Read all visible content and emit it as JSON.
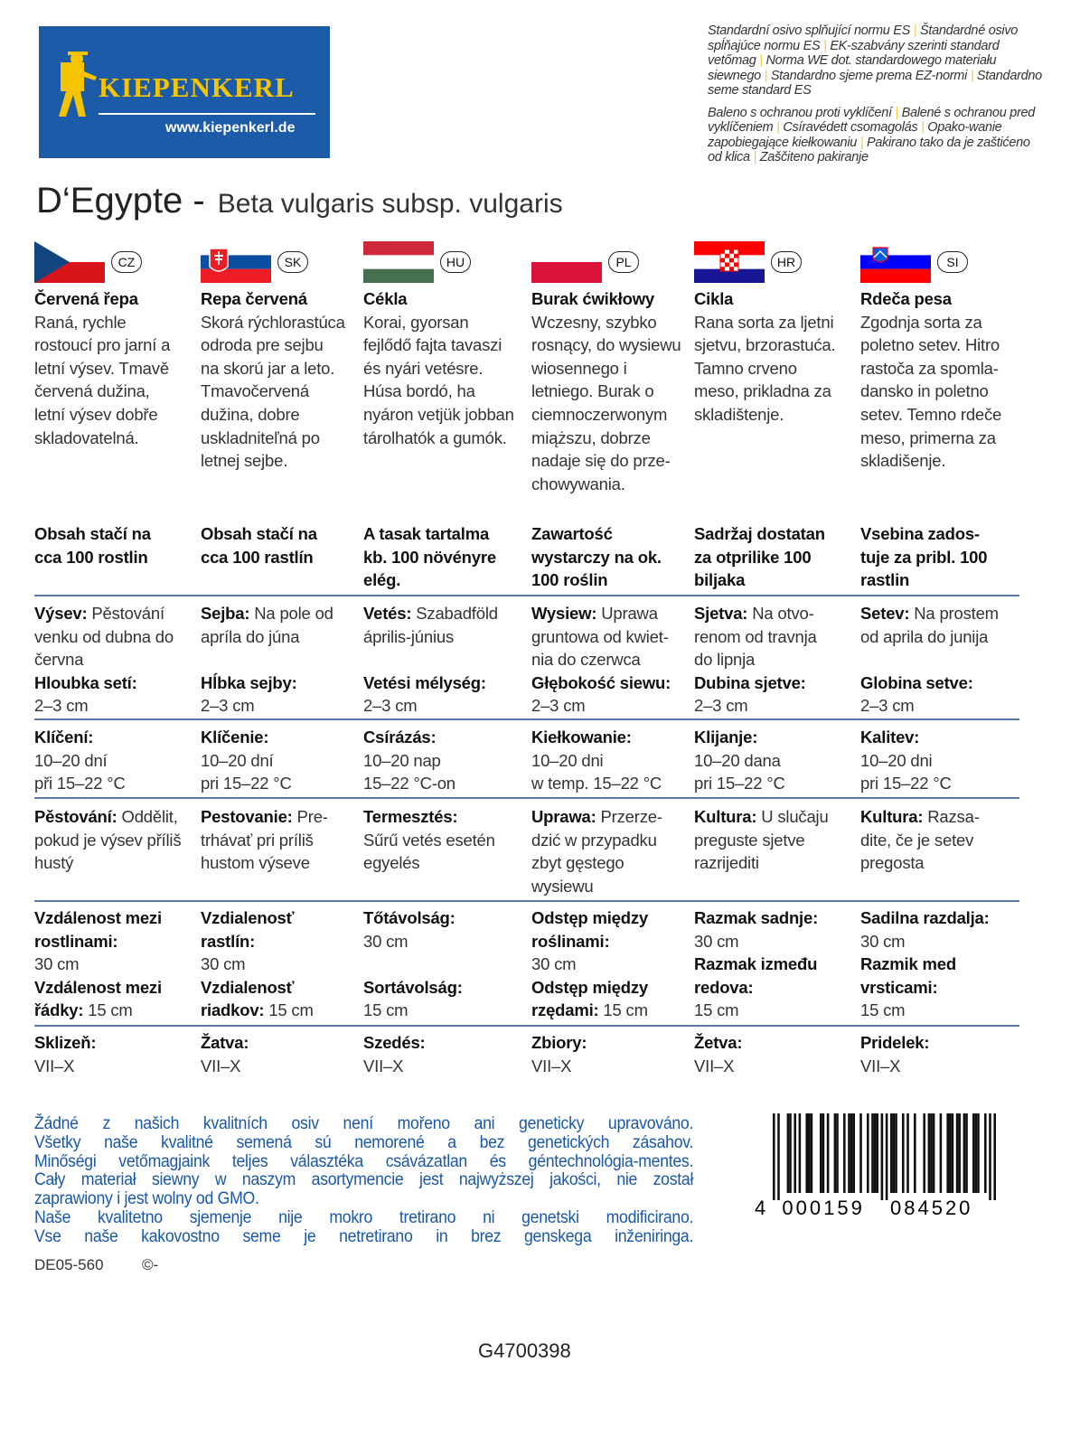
{
  "logo": {
    "brand": "KIEPENKERL",
    "url": "www.kiepenkerl.de",
    "bg": "#1c5ba8",
    "brand_color": "#f5c400"
  },
  "norms": {
    "standard": [
      "Standardní osivo splňující normu ES",
      "Štandardné osivo spĺňajúce normu ES",
      "EK-szabvány szerinti standard vetőmag",
      "Norma WE dot. standardowego materiału siewnego",
      "Standardno sjeme prema EZ-normi",
      "Standardno seme standard ES"
    ],
    "packaging": [
      "Baleno s ochranou proti vyklíčení",
      "Balené s ochranou pred vyklíčeniem",
      "Csíravédett csomagolás",
      "Opako-wanie zapobiegające kiełkowaniu",
      "Pakirano tako da je zaštićeno od klica",
      "Zaščiteno pakiranje"
    ]
  },
  "title": {
    "variety": "D‘Egypte -",
    "latin": "Beta vulgaris subsp. vulgaris"
  },
  "columns": [
    {
      "code": "CZ",
      "flag": "cz",
      "name": "Červená řepa",
      "desc": "Raná, rychle\nrostoucí pro jarní a\nletní výsev. Tmavě\nčervená dužina,\nletní výsev dobře\nskladovatelná.",
      "contents": "Obsah stačí na\ncca 100 rostlin",
      "sowing": [
        {
          "b": "Výsev:"
        },
        {
          "t": " Pěstování\nvenku od dubna do\nčervna\n"
        },
        {
          "b": "Hloubka setí:"
        },
        {
          "t": "\n2–3 cm"
        }
      ],
      "germination": [
        {
          "b": "Klíčení:"
        },
        {
          "t": "\n10–20 dní\npři 15–22 °C"
        }
      ],
      "cultivation": [
        {
          "b": "Pěstování:"
        },
        {
          "t": " Oddělit,\npokud je výsev příliš\nhustý"
        }
      ],
      "spacing": [
        {
          "b": "Vzdálenost mezi\nrostlinami:"
        },
        {
          "t": "\n30 cm\n"
        },
        {
          "b": "Vzdálenost mezi\nřádky:"
        },
        {
          "t": " 15 cm"
        }
      ],
      "harvest": [
        {
          "b": "Sklizeň:"
        },
        {
          "t": "\nVII–X"
        }
      ]
    },
    {
      "code": "SK",
      "flag": "sk",
      "name": "Repa červená",
      "desc": "Skorá rýchlorastúca\nodroda pre sejbu\nna skorú jar a leto.\nTmavočervená\ndužina, dobre\nuskladniteľná po\nletnej sejbe.",
      "contents": "Obsah stačí na\ncca 100 rastlín",
      "sowing": [
        {
          "b": "Sejba:"
        },
        {
          "t": " Na pole od\napríla do júna\n\n"
        },
        {
          "b": "Hĺbka sejby:"
        },
        {
          "t": "\n2–3 cm"
        }
      ],
      "germination": [
        {
          "b": "Klíčenie:"
        },
        {
          "t": "\n10–20 dní\npri 15–22 °C"
        }
      ],
      "cultivation": [
        {
          "b": "Pestovanie:"
        },
        {
          "t": " Pre-\ntrhávať pri príliš\nhustom výseve"
        }
      ],
      "spacing": [
        {
          "b": "Vzdialenosť\nrastlín:"
        },
        {
          "t": "\n30 cm\n"
        },
        {
          "b": "Vzdialenosť\nriadkov:"
        },
        {
          "t": " 15 cm"
        }
      ],
      "harvest": [
        {
          "b": "Žatva:"
        },
        {
          "t": "\nVII–X"
        }
      ]
    },
    {
      "code": "HU",
      "flag": "hu",
      "name": "Cékla",
      "desc": "Korai, gyorsan\nfejlődő fajta tavaszi\nés nyári vetésre.\nHúsa bordó, ha\nnyáron vetjük jobban\ntárolhatók a gumók.",
      "contents": "A tasak tartalma\nkb. 100 növényre\nelég.",
      "sowing": [
        {
          "b": "Vetés:"
        },
        {
          "t": " Szabadföld\náprilis-június\n\n"
        },
        {
          "b": "Vetési mélység:"
        },
        {
          "t": "\n2–3 cm"
        }
      ],
      "germination": [
        {
          "b": "Csírázás:"
        },
        {
          "t": "\n10–20 nap\n15–22 °C-on"
        }
      ],
      "cultivation": [
        {
          "b": "Termesztés:"
        },
        {
          "t": "\nSűrű vetés esetén\negyelés"
        }
      ],
      "spacing": [
        {
          "b": "Tőtávolság:"
        },
        {
          "t": "\n30 cm\n\n"
        },
        {
          "b": "Sortávolság:"
        },
        {
          "t": "\n15 cm"
        }
      ],
      "harvest": [
        {
          "b": "Szedés:"
        },
        {
          "t": "\nVII–X"
        }
      ]
    },
    {
      "code": "PL",
      "flag": "pl",
      "name": "Burak ćwikłowy",
      "desc": "Wczesny, szybko\nrosnący, do wysiewu\nwiosennego i\nletniego. Burak o\nciemnoczerwonym\nmiąższu, dobrze\nnadaje się do prze-\nchowywania.",
      "contents": "Zawartość\nwystarczy na ok.\n100 roślin",
      "sowing": [
        {
          "b": "Wysiew:"
        },
        {
          "t": " Uprawa\ngruntowa od kwiet-\nnia do czerwca\n"
        },
        {
          "b": "Głębokość siewu:"
        },
        {
          "t": "\n2–3 cm"
        }
      ],
      "germination": [
        {
          "b": "Kiełkowanie:"
        },
        {
          "t": "\n10–20 dni\nw temp. 15–22 °C"
        }
      ],
      "cultivation": [
        {
          "b": "Uprawa:"
        },
        {
          "t": " Przerze-\ndzić w przypadku\nzbyt gęstego\nwysiewu"
        }
      ],
      "spacing": [
        {
          "b": "Odstęp między\nroślinami:"
        },
        {
          "t": "\n30 cm\n"
        },
        {
          "b": "Odstęp między\nrzędami:"
        },
        {
          "t": " 15 cm"
        }
      ],
      "harvest": [
        {
          "b": "Zbiory:"
        },
        {
          "t": "\nVII–X"
        }
      ]
    },
    {
      "code": "HR",
      "flag": "hr",
      "name": "Cikla",
      "desc": "Rana sorta za ljetni\nsjetvu, brzorastuća.\nTamno crveno\nmeso, prikladna za\nskladištenje.",
      "contents": "Sadržaj dostatan\nza otprilike 100\nbiljaka",
      "sowing": [
        {
          "b": "Sjetva:"
        },
        {
          "t": " Na otvo-\nrenom od travnja\ndo lipnja\n"
        },
        {
          "b": "Dubina sjetve:"
        },
        {
          "t": "\n2–3 cm"
        }
      ],
      "germination": [
        {
          "b": "Klijanje:"
        },
        {
          "t": "\n10–20 dana\npri 15–22 °C"
        }
      ],
      "cultivation": [
        {
          "b": "Kultura:"
        },
        {
          "t": " U slučaju\npreguste sjetve\nrazrijediti"
        }
      ],
      "spacing": [
        {
          "b": "Razmak sadnje:"
        },
        {
          "t": "\n30 cm\n"
        },
        {
          "b": "Razmak između\nredova:"
        },
        {
          "t": "\n15 cm"
        }
      ],
      "harvest": [
        {
          "b": "Žetva:"
        },
        {
          "t": "\nVII–X"
        }
      ]
    },
    {
      "code": "SI",
      "flag": "si",
      "name": "Rdeča pesa",
      "desc": "Zgodnja sorta za\npoletno setev. Hitro\nrastoča za spomla-\ndansko in poletno\nsetev. Temno rdeče\nmeso, primerna za\nskladišenje.",
      "contents": "Vsebina zados-\ntuje za pribl. 100\nrastlin",
      "sowing": [
        {
          "b": "Setev:"
        },
        {
          "t": " Na prostem\nod aprila do junija\n\n"
        },
        {
          "b": "Globina setve:"
        },
        {
          "t": "\n2–3 cm"
        }
      ],
      "germination": [
        {
          "b": "Kalitev:"
        },
        {
          "t": "\n10–20 dni\npri 15–22 °C"
        }
      ],
      "cultivation": [
        {
          "b": "Kultura:"
        },
        {
          "t": " Razsa-\ndite, če je setev\npregosta"
        }
      ],
      "spacing": [
        {
          "b": "Sadilna razdalja:"
        },
        {
          "t": "\n30 cm\n"
        },
        {
          "b": "Razmik med\nvrsticami:"
        },
        {
          "t": "\n15 cm"
        }
      ],
      "harvest": [
        {
          "b": "Pridelek:"
        },
        {
          "t": "\nVII–X"
        }
      ]
    }
  ],
  "gmo_notice": [
    "Žádné z našich kvalitních osiv není mořeno ani geneticky upravováno.",
    "Všetky naše kvalitné semená sú nemorené a bez genetických zásahov.",
    "Minőségi vetőmagjaink teljes választéka csávázatlan és géntechnológia-mentes.",
    "Cały materiał siewny w naszym asortymencie jest najwyższej jakości, nie został",
    "zaprawiony i jest wolny od GMO.",
    "Naše kvalitetno sjemenje nije mokro tretirano ni genetski modificirano.",
    "Vse naše kakovostno seme je netretirano in brez genskega inženiringa."
  ],
  "gmo_color": "#1a58a6",
  "article_code": "DE05-560",
  "copyright": "©-",
  "barcode": {
    "digits": "4000159084520",
    "first": "4",
    "left": "000159",
    "right": "084520"
  },
  "package_code": "G4700398",
  "rule_color": "#5a78a8"
}
